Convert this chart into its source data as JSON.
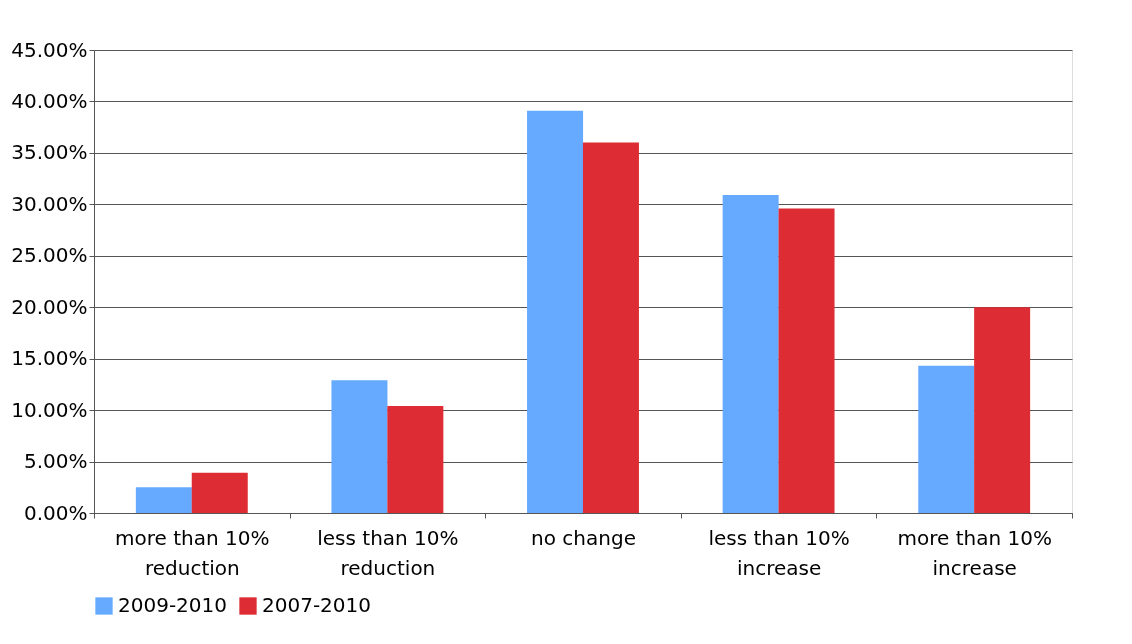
{
  "chart_data": {
    "type": "bar",
    "categories": [
      "more than 10%\nreduction",
      "less than 10%\nreduction",
      "no change",
      "less than 10%\nincrease",
      "more than 10%\nincrease"
    ],
    "series": [
      {
        "name": "2009-2010",
        "color": "#66aaff",
        "values": [
          2.5,
          12.9,
          39.1,
          30.9,
          14.3
        ]
      },
      {
        "name": "2007-2010",
        "color": "#dd2c33",
        "values": [
          3.9,
          10.4,
          36.0,
          29.6,
          20.0
        ]
      }
    ],
    "ylim": [
      0,
      45
    ],
    "yticks": [
      {
        "value": 0,
        "label": "0.00%"
      },
      {
        "value": 5,
        "label": "5.00%"
      },
      {
        "value": 10,
        "label": "10.00%"
      },
      {
        "value": 15,
        "label": "15.00%"
      },
      {
        "value": 20,
        "label": "20.00%"
      },
      {
        "value": 25,
        "label": "25.00%"
      },
      {
        "value": 30,
        "label": "30.00%"
      },
      {
        "value": 35,
        "label": "35.00%"
      },
      {
        "value": 40,
        "label": "40.00%"
      },
      {
        "value": 45,
        "label": "45.00%"
      }
    ],
    "grid": "y",
    "legend": "bottom"
  }
}
